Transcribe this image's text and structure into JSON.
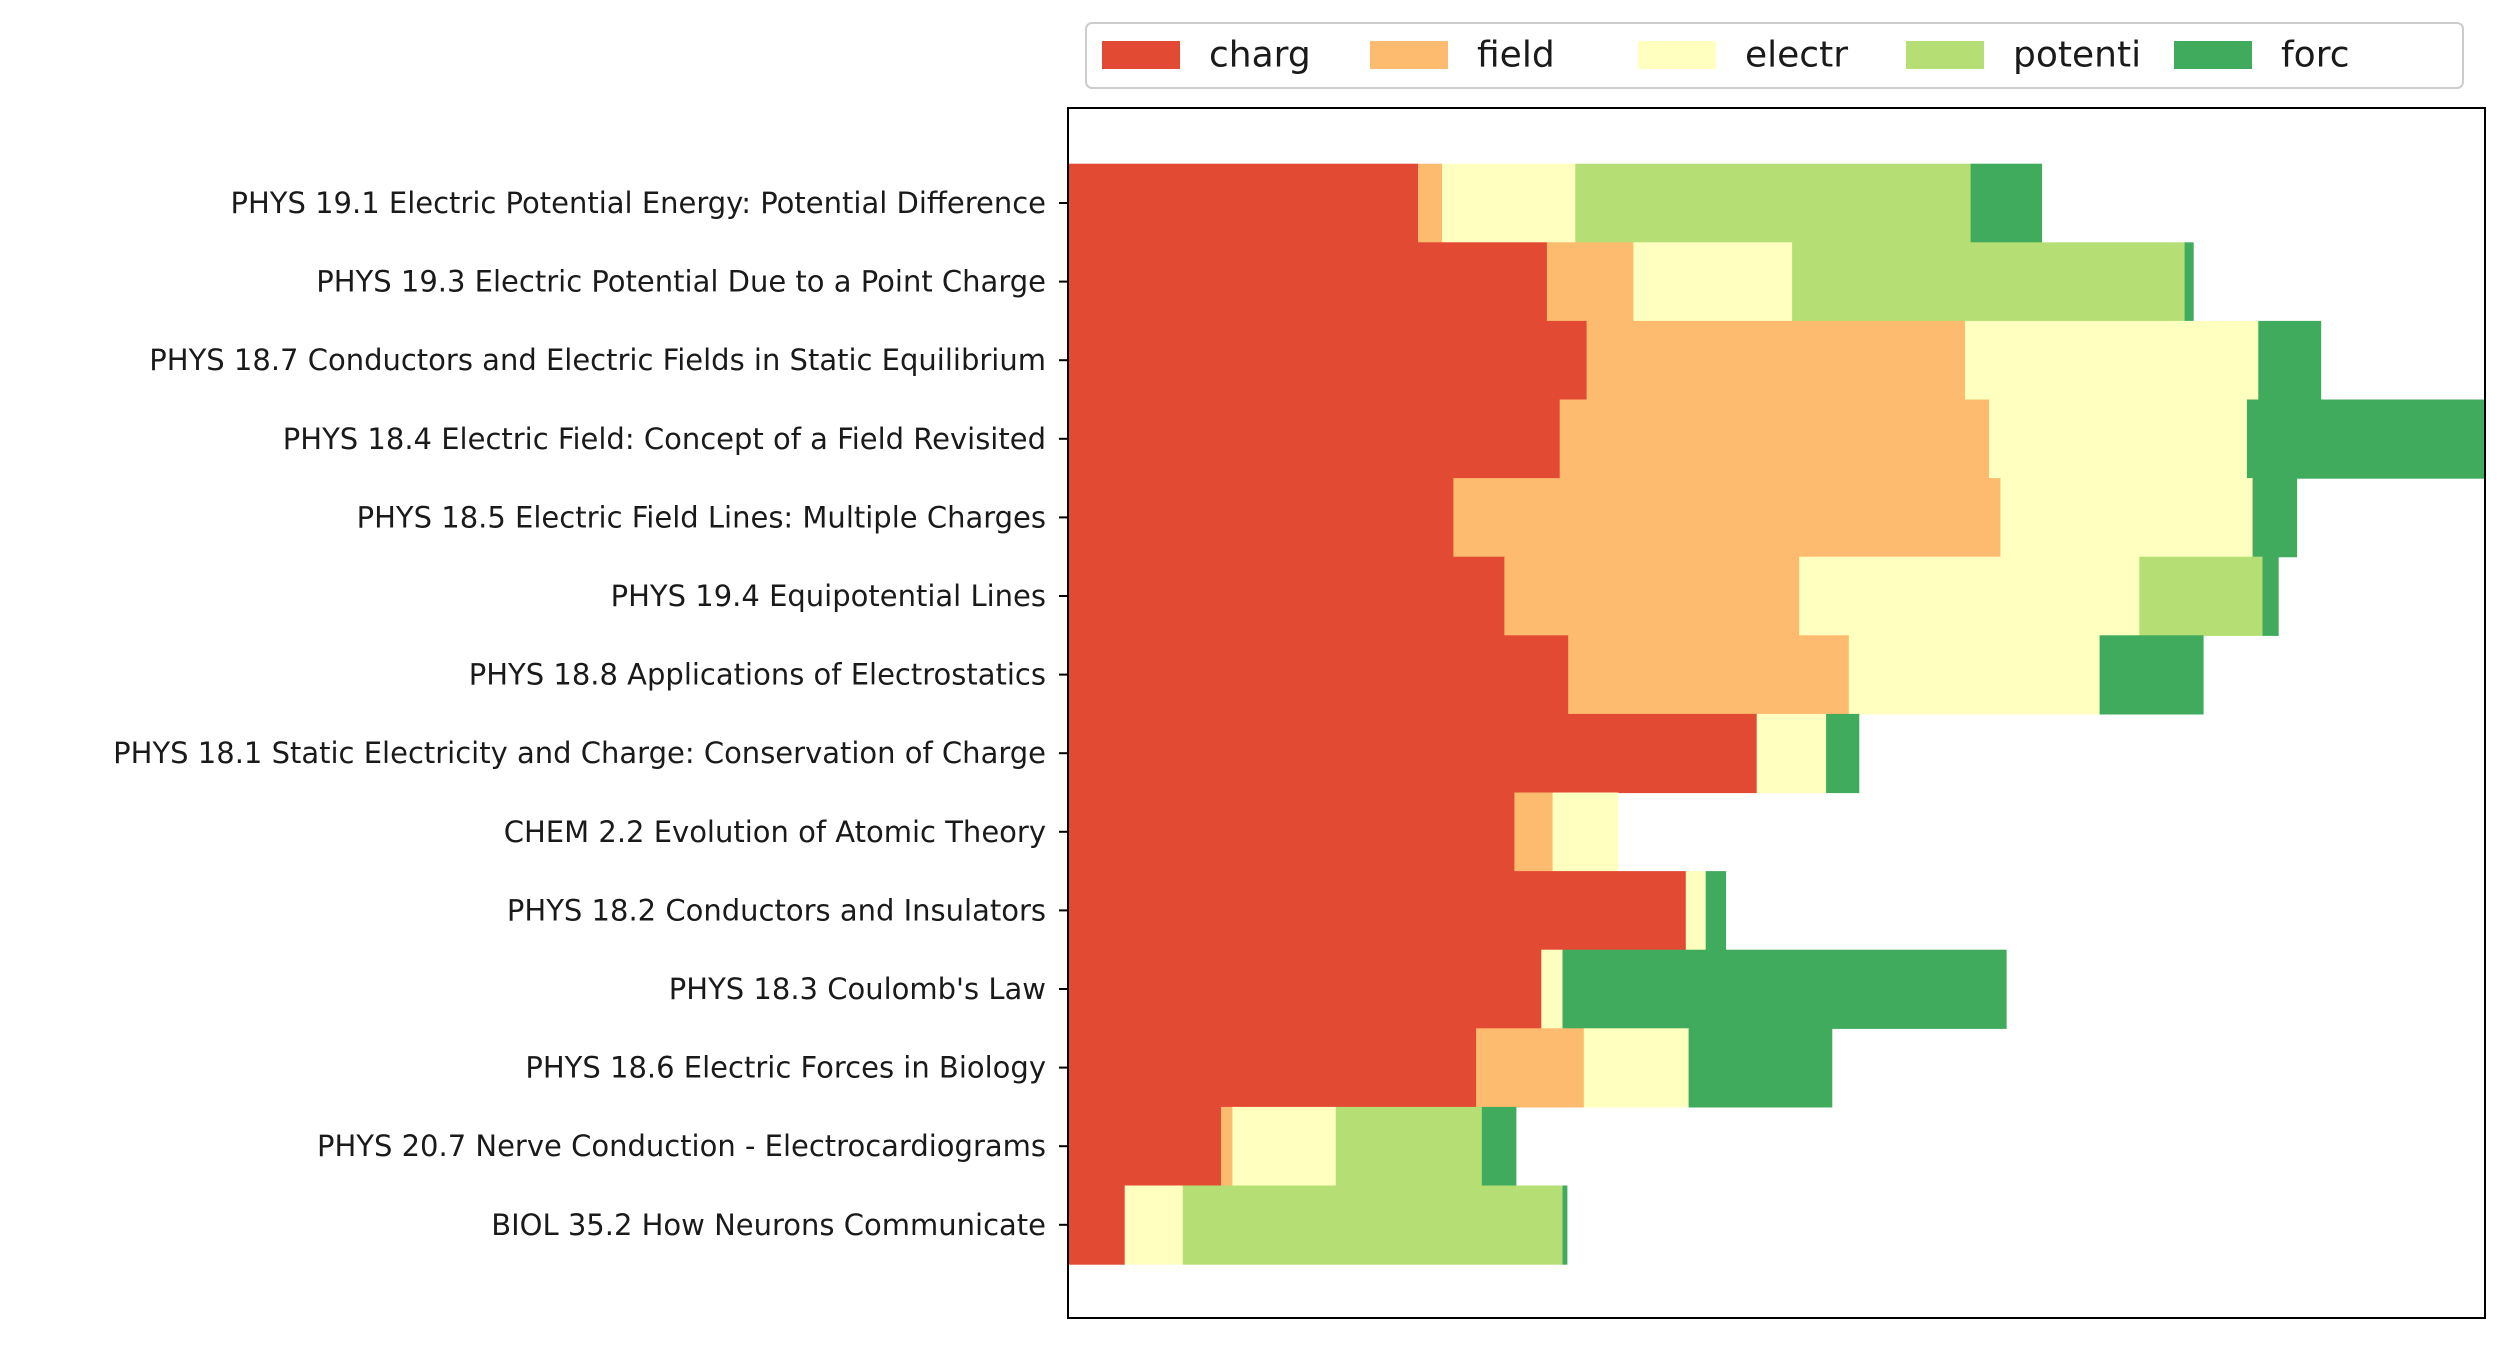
{
  "chart_data": {
    "type": "bar",
    "orientation": "horizontal",
    "stacked": true,
    "title": "",
    "xlabel": "",
    "ylabel": "",
    "xlim": [
      0,
      1.0
    ],
    "grid": false,
    "legend_position": "top",
    "categories": [
      "PHYS 19.1 Electric Potential Energy: Potential Difference",
      "PHYS 19.3 Electric Potential Due to a Point Charge",
      "PHYS 18.7 Conductors and Electric Fields in Static Equilibrium ",
      "PHYS 18.4 Electric Field: Concept of a Field Revisited",
      "PHYS 18.5 Electric Field Lines: Multiple Charges",
      "PHYS 19.4 Equipotential Lines",
      "PHYS 18.8 Applications of Electrostatics",
      "PHYS 18.1 Static Electricity and Charge: Conservation of Charge",
      "CHEM 2.2 Evolution of Atomic Theory",
      "PHYS 18.2 Conductors and Insulators",
      "PHYS 18.3 Coulomb's Law",
      "PHYS 18.6 Electric Forces in Biology",
      "PHYS 20.7 Nerve Conduction - Electrocardiograms",
      "BIOL 35.2 How Neurons Communicate"
    ],
    "series": [
      {
        "name": "charg",
        "color": "#e34a33",
        "values": [
          0.247,
          0.338,
          0.366,
          0.347,
          0.272,
          0.308,
          0.353,
          0.486,
          0.315,
          0.436,
          0.334,
          0.288,
          0.108,
          0.04
        ]
      },
      {
        "name": "field",
        "color": "#fdbb6f",
        "values": [
          0.017,
          0.061,
          0.267,
          0.303,
          0.386,
          0.208,
          0.198,
          0.0,
          0.027,
          0.0,
          0.0,
          0.076,
          0.008,
          0.0
        ]
      },
      {
        "name": "electr",
        "color": "#ffffbf",
        "values": [
          0.094,
          0.112,
          0.207,
          0.182,
          0.178,
          0.24,
          0.177,
          0.049,
          0.046,
          0.014,
          0.015,
          0.074,
          0.073,
          0.041
        ]
      },
      {
        "name": "potenti",
        "color": "#b5df74",
        "values": [
          0.279,
          0.277,
          0.0,
          0.0,
          0.0,
          0.087,
          0.0,
          0.0,
          0.0,
          0.0,
          0.0,
          0.0,
          0.103,
          0.268
        ]
      },
      {
        "name": "forc",
        "color": "#41ab5d",
        "values": [
          0.05,
          0.006,
          0.044,
          0.168,
          0.031,
          0.011,
          0.073,
          0.023,
          0.0,
          0.014,
          0.313,
          0.101,
          0.024,
          0.003
        ]
      }
    ]
  }
}
